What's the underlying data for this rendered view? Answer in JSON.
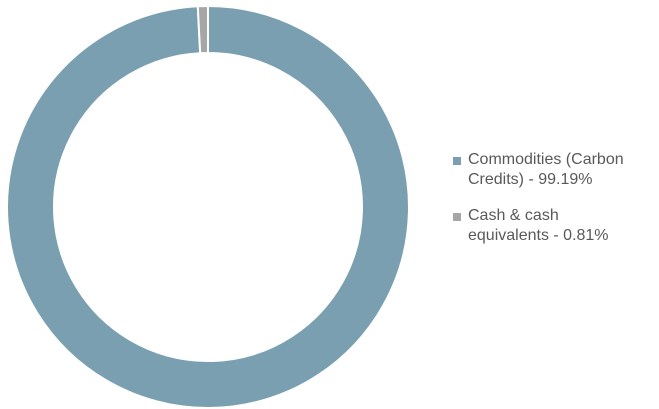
{
  "chart_data": {
    "type": "pie",
    "variant": "donut",
    "title": "",
    "series": [
      {
        "name": "Commodities (Carbon Credits) - 99.19%",
        "legend_label": "Commodities (Carbon\nCredits)  - 99.19%",
        "value": 99.19,
        "color": "#7A9FB1"
      },
      {
        "name": "Cash & cash equivalents - 0.81%",
        "legend_label": "Cash & cash\nequivalents - 0.81%",
        "value": 0.81,
        "color": "#A6A6A6"
      }
    ],
    "legend_position": "right",
    "slice_border_color": "#FFFFFF"
  }
}
